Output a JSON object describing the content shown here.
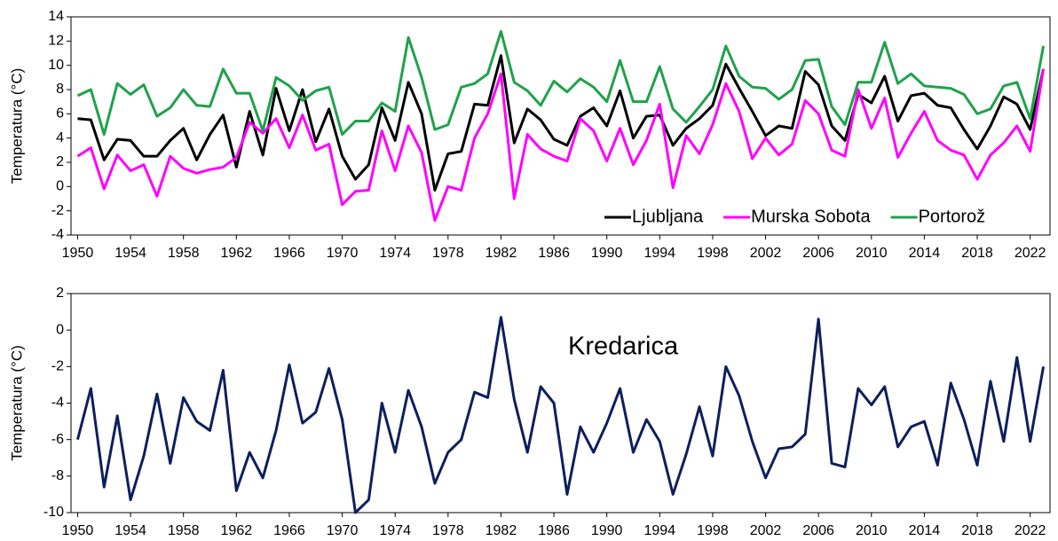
{
  "chart_data": [
    {
      "type": "line",
      "y_label": "Temperatura (°C)",
      "x": [
        1950,
        1951,
        1952,
        1953,
        1954,
        1955,
        1956,
        1957,
        1958,
        1959,
        1960,
        1961,
        1962,
        1963,
        1964,
        1965,
        1966,
        1967,
        1968,
        1969,
        1970,
        1971,
        1972,
        1973,
        1974,
        1975,
        1976,
        1977,
        1978,
        1979,
        1980,
        1981,
        1982,
        1983,
        1984,
        1985,
        1986,
        1987,
        1988,
        1989,
        1990,
        1991,
        1992,
        1993,
        1994,
        1995,
        1996,
        1997,
        1998,
        1999,
        2000,
        2001,
        2002,
        2003,
        2004,
        2005,
        2006,
        2007,
        2008,
        2009,
        2010,
        2011,
        2012,
        2013,
        2014,
        2015,
        2016,
        2017,
        2018,
        2019,
        2020,
        2021,
        2022,
        2023
      ],
      "xlim": [
        1949.5,
        2023.5
      ],
      "xticks": [
        1950,
        1954,
        1958,
        1962,
        1966,
        1970,
        1974,
        1978,
        1982,
        1986,
        1990,
        1994,
        1998,
        2002,
        2006,
        2010,
        2014,
        2018,
        2022
      ],
      "ylim": [
        -4,
        14
      ],
      "yticks": [
        -4,
        -2,
        0,
        2,
        4,
        6,
        8,
        10,
        12,
        14
      ],
      "legend": "lower right",
      "series": [
        {
          "name": "Ljubljana",
          "color": "#000000",
          "values": [
            5.6,
            5.5,
            2.2,
            3.9,
            3.8,
            2.5,
            2.5,
            3.8,
            4.8,
            2.2,
            4.3,
            5.9,
            1.6,
            6.2,
            2.6,
            8.1,
            4.6,
            8.0,
            3.7,
            6.4,
            2.5,
            0.6,
            1.8,
            6.5,
            3.8,
            8.6,
            6.0,
            -0.3,
            2.7,
            2.9,
            6.8,
            6.7,
            10.8,
            3.6,
            6.4,
            5.5,
            3.9,
            3.4,
            5.8,
            6.5,
            5.0,
            7.9,
            4.0,
            5.8,
            5.9,
            3.4,
            4.8,
            5.6,
            6.7,
            10.1,
            8.1,
            6.2,
            4.2,
            5.0,
            4.8,
            9.5,
            8.4,
            5.0,
            3.8,
            7.6,
            6.9,
            9.1,
            5.4,
            7.5,
            7.7,
            6.7,
            6.5,
            4.7,
            3.1,
            5.0,
            7.4,
            6.8,
            4.7,
            9.7
          ]
        },
        {
          "name": "Murska Sobota",
          "color": "#ff00ff",
          "values": [
            2.5,
            3.2,
            -0.2,
            2.6,
            1.3,
            1.8,
            -0.8,
            2.5,
            1.5,
            1.1,
            1.4,
            1.6,
            2.4,
            5.3,
            4.4,
            5.6,
            3.2,
            5.9,
            3.0,
            3.5,
            -1.5,
            -0.4,
            -0.3,
            4.6,
            1.3,
            5.0,
            2.8,
            -2.8,
            0.0,
            -0.3,
            4.0,
            6.0,
            9.3,
            -1.0,
            4.3,
            3.1,
            2.5,
            2.1,
            5.6,
            4.6,
            2.1,
            4.8,
            1.8,
            3.8,
            6.8,
            -0.1,
            4.2,
            2.7,
            5.1,
            8.5,
            6.2,
            2.3,
            4.0,
            2.6,
            3.5,
            7.1,
            6.0,
            3.0,
            2.5,
            8.0,
            4.8,
            7.3,
            2.4,
            4.4,
            6.2,
            3.8,
            3.0,
            2.6,
            0.6,
            2.6,
            3.6,
            5.0,
            2.9,
            9.7
          ]
        },
        {
          "name": "Portorož",
          "color": "#1fa24a",
          "values": [
            7.5,
            8.0,
            4.3,
            8.5,
            7.6,
            8.4,
            5.8,
            6.5,
            8.0,
            6.7,
            6.6,
            9.7,
            7.7,
            7.7,
            4.6,
            9.0,
            8.3,
            7.1,
            7.9,
            8.2,
            4.3,
            5.4,
            5.4,
            6.9,
            6.2,
            12.3,
            9.0,
            4.7,
            5.1,
            8.2,
            8.5,
            9.3,
            12.8,
            8.6,
            7.9,
            6.7,
            8.7,
            7.8,
            8.9,
            8.2,
            7.0,
            10.4,
            7.0,
            7.0,
            9.9,
            6.4,
            5.3,
            6.6,
            8.0,
            11.6,
            9.1,
            8.2,
            8.1,
            7.2,
            8.0,
            10.4,
            10.5,
            6.6,
            5.1,
            8.6,
            8.6,
            11.9,
            8.5,
            9.3,
            8.3,
            8.2,
            8.1,
            7.6,
            6.0,
            6.4,
            8.3,
            8.6,
            5.6,
            11.6
          ]
        }
      ]
    },
    {
      "type": "line",
      "y_label": "Temperatura (°C)",
      "x": [
        1950,
        1951,
        1952,
        1953,
        1954,
        1955,
        1956,
        1957,
        1958,
        1959,
        1960,
        1961,
        1962,
        1963,
        1964,
        1965,
        1966,
        1967,
        1968,
        1969,
        1970,
        1971,
        1972,
        1973,
        1974,
        1975,
        1976,
        1977,
        1978,
        1979,
        1980,
        1981,
        1982,
        1983,
        1984,
        1985,
        1986,
        1987,
        1988,
        1989,
        1990,
        1991,
        1992,
        1993,
        1994,
        1995,
        1996,
        1997,
        1998,
        1999,
        2000,
        2001,
        2002,
        2003,
        2004,
        2005,
        2006,
        2007,
        2008,
        2009,
        2010,
        2011,
        2012,
        2013,
        2014,
        2015,
        2016,
        2017,
        2018,
        2019,
        2020,
        2021,
        2022,
        2023
      ],
      "xlim": [
        1949.5,
        2023.5
      ],
      "xticks": [
        1950,
        1954,
        1958,
        1962,
        1966,
        1970,
        1974,
        1978,
        1982,
        1986,
        1990,
        1994,
        1998,
        2002,
        2006,
        2010,
        2014,
        2018,
        2022
      ],
      "ylim": [
        -10,
        2
      ],
      "yticks": [
        -10,
        -8,
        -6,
        -4,
        -2,
        0,
        2
      ],
      "series": [
        {
          "name": "Kredarica",
          "color": "#0d1f5c",
          "values": [
            -6.0,
            -3.2,
            -8.6,
            -4.7,
            -9.3,
            -6.9,
            -3.5,
            -7.3,
            -3.7,
            -5.0,
            -5.5,
            -2.2,
            -8.8,
            -6.7,
            -8.1,
            -5.5,
            -1.9,
            -5.1,
            -4.5,
            -2.1,
            -4.9,
            -10.0,
            -9.3,
            -4.0,
            -6.7,
            -3.3,
            -5.3,
            -8.4,
            -6.7,
            -6.0,
            -3.4,
            -3.7,
            0.7,
            -3.8,
            -6.7,
            -3.1,
            -4.0,
            -9.0,
            -5.3,
            -6.7,
            -5.1,
            -3.2,
            -6.7,
            -4.9,
            -6.1,
            -9.0,
            -6.8,
            -4.2,
            -6.9,
            -2.0,
            -3.6,
            -6.1,
            -8.1,
            -6.5,
            -6.4,
            -5.7,
            0.6,
            -7.3,
            -7.5,
            -3.2,
            -4.1,
            -3.1,
            -6.4,
            -5.3,
            -5.0,
            -7.4,
            -2.9,
            -4.9,
            -7.4,
            -2.8,
            -6.1,
            -1.5,
            -6.1,
            -2.0
          ]
        }
      ]
    }
  ]
}
